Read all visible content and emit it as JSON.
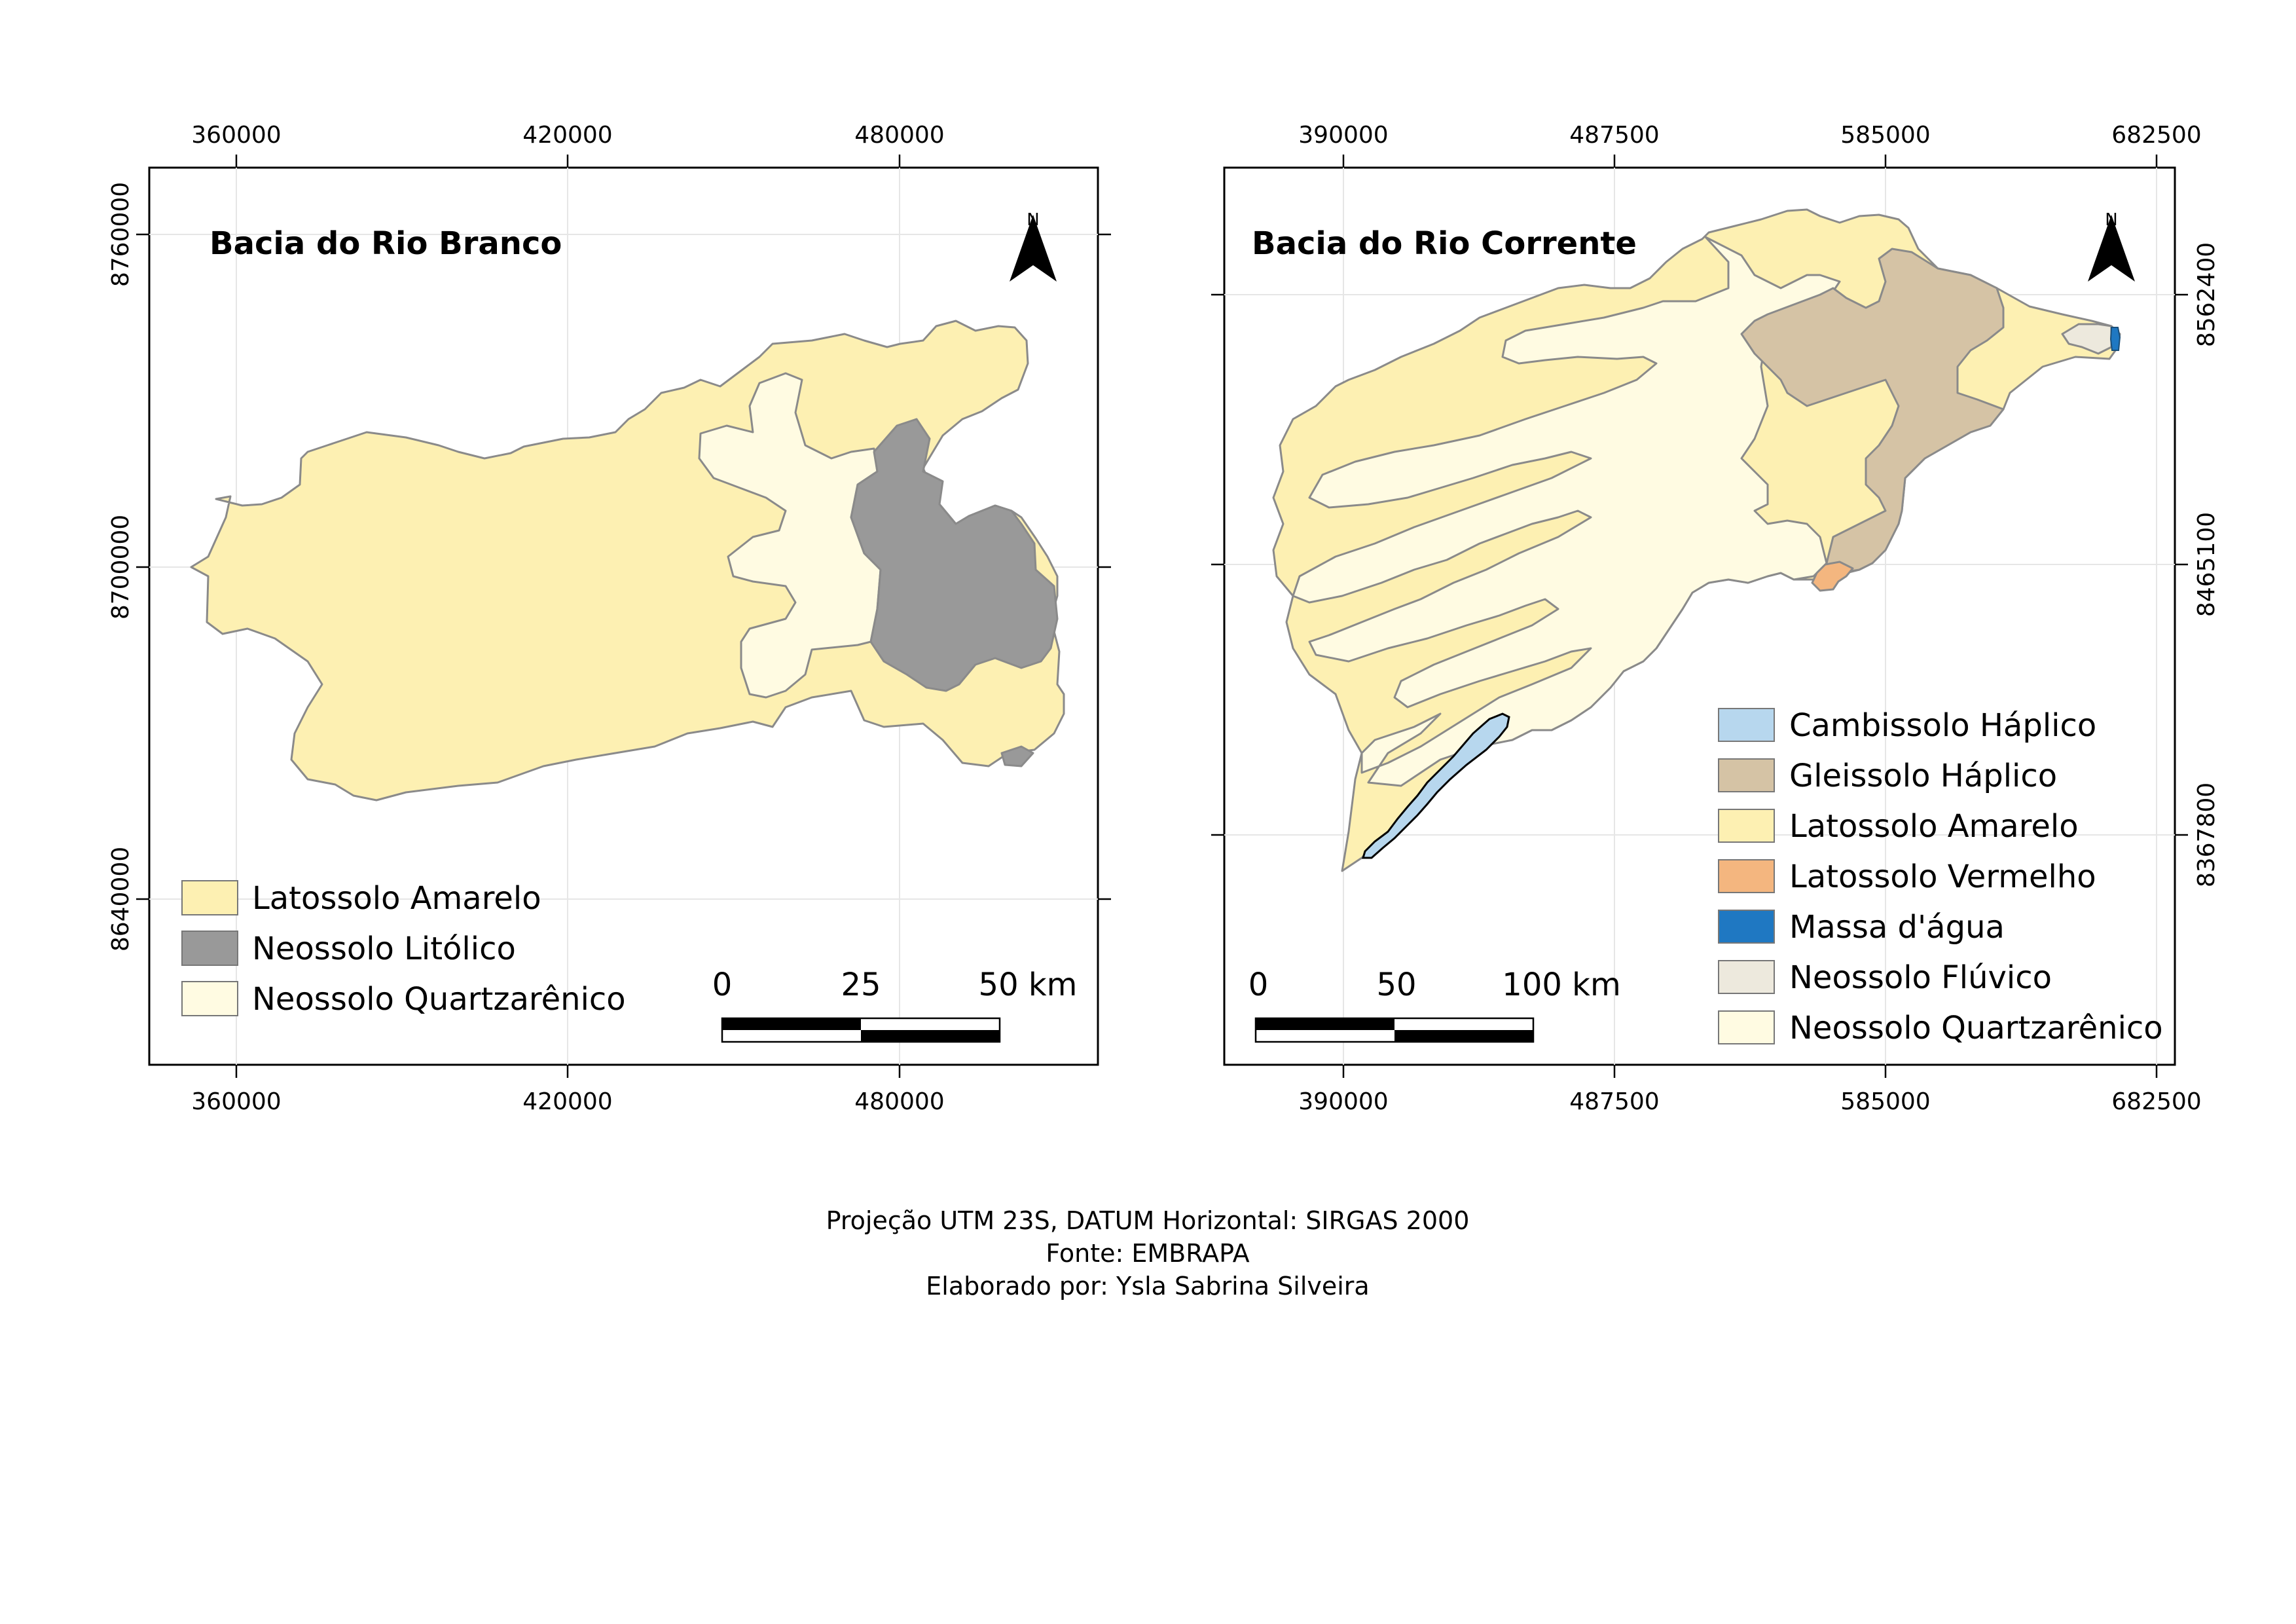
{
  "colors": {
    "latossolo_amarelo": "#fdf0b2",
    "neossolo_litolico": "#999999",
    "neossolo_quartzarenico": "#fffbe2",
    "cambissolo_haplico": "#b7d7ee",
    "gleissolo_haplico": "#d5c3a5",
    "latossolo_vermelho": "#f4b67f",
    "massa_dagua": "#1f78c2",
    "neossolo_fluvico": "#ede9dd"
  },
  "maps": [
    {
      "title": "Bacia do Rio Branco",
      "x_ticks": [
        "360000",
        "420000",
        "480000"
      ],
      "y_ticks": [
        "8760000",
        "8700000",
        "8640000"
      ],
      "north": "N",
      "legend": [
        {
          "label": "Latossolo Amarelo",
          "color": "#fdf0b2"
        },
        {
          "label": "Neossolo Litólico",
          "color": "#999999"
        },
        {
          "label": "Neossolo Quartzarênico",
          "color": "#fffbe2"
        }
      ],
      "scale": {
        "labels": [
          "0",
          "25",
          "50 km"
        ]
      }
    },
    {
      "title": "Bacia do Rio Corrente",
      "x_ticks": [
        "390000",
        "487500",
        "585000",
        "682500"
      ],
      "y_ticks": [
        "8562400",
        "8465100",
        "8367800"
      ],
      "north": "N",
      "legend": [
        {
          "label": "Cambissolo Háplico",
          "color": "#b7d7ee"
        },
        {
          "label": "Gleissolo Háplico",
          "color": "#d5c3a5"
        },
        {
          "label": "Latossolo Amarelo",
          "color": "#fdf0b2"
        },
        {
          "label": "Latossolo Vermelho",
          "color": "#f4b67f"
        },
        {
          "label": "Massa d'água",
          "color": "#1f78c2"
        },
        {
          "label": "Neossolo Flúvico",
          "color": "#ede9dd"
        },
        {
          "label": "Neossolo Quartzarênico",
          "color": "#fffbe2"
        }
      ],
      "scale": {
        "labels": [
          "0",
          "50",
          "100 km"
        ]
      }
    }
  ],
  "footer": [
    "Projeção UTM 23S, DATUM Horizontal: SIRGAS 2000",
    "Fonte: EMBRAPA",
    "Elaborado por: Ysla Sabrina Silveira"
  ]
}
